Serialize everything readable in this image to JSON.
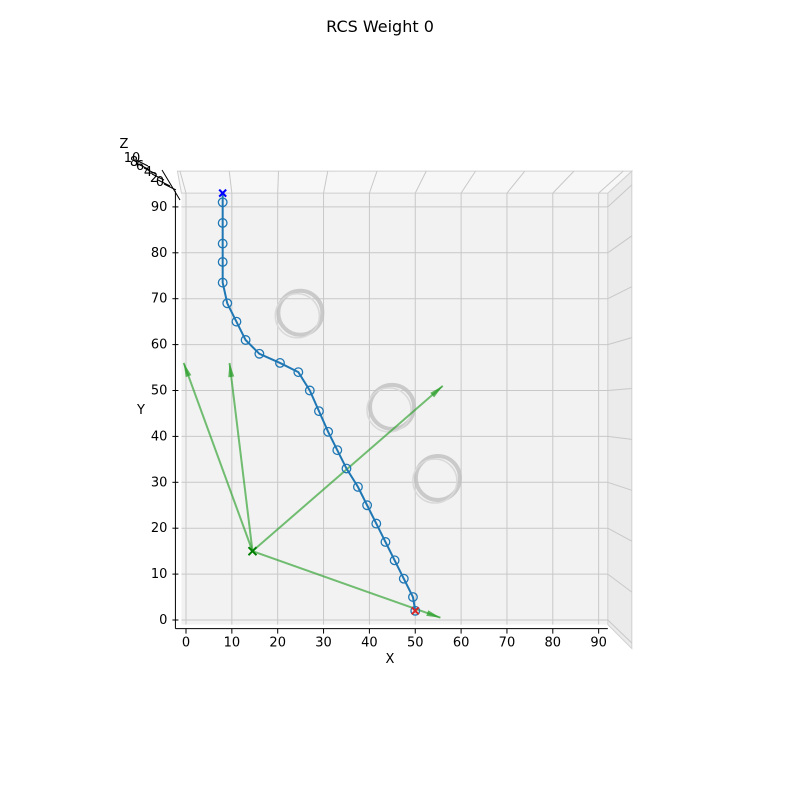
{
  "chart_data": {
    "type": "scatter",
    "title": "RCS Weight 0",
    "xlabel": "X",
    "ylabel": "Y",
    "zlabel": "Z",
    "xlim": [
      -1,
      92
    ],
    "ylim": [
      -1,
      93
    ],
    "x_ticks": [
      "0",
      "10",
      "20",
      "30",
      "40",
      "50",
      "60",
      "70",
      "80",
      "90"
    ],
    "y_ticks": [
      "0",
      "10",
      "20",
      "30",
      "40",
      "50",
      "60",
      "70",
      "80",
      "90"
    ],
    "z_ticks": [
      "0",
      "2",
      "4",
      "6",
      "8",
      "10"
    ],
    "grid": true,
    "view": "top-down (looking along Z)",
    "path": {
      "color": "#1f77b4",
      "marker": "open-circle",
      "x": [
        8,
        8,
        8,
        8,
        8,
        8,
        9,
        11,
        13,
        16,
        20.5,
        24.5,
        27,
        29,
        31,
        33,
        35,
        37.5,
        39.5,
        41.5,
        43.5,
        45.5,
        47.5,
        49.5,
        50
      ],
      "y": [
        93,
        91,
        86.5,
        82,
        78,
        73.5,
        69,
        65,
        61,
        58,
        56,
        54,
        50,
        45.5,
        41,
        37,
        33,
        29,
        25,
        21,
        17,
        13,
        9,
        5,
        2
      ]
    },
    "start_point": {
      "x": 8,
      "y": 93,
      "color": "#0000ff",
      "marker": "x"
    },
    "goal_point": {
      "x": 50,
      "y": 2,
      "color": "#d62728",
      "marker": "x-circle"
    },
    "obstacles": [
      {
        "cx": 24.5,
        "cy": 66.5,
        "r": 4.8,
        "color": "#bfbfbf"
      },
      {
        "cx": 44.5,
        "cy": 46,
        "r": 4.8,
        "color": "#bfbfbf"
      },
      {
        "cx": 54.5,
        "cy": 30.5,
        "r": 4.8,
        "color": "#bfbfbf"
      }
    ],
    "frame": {
      "origin": {
        "x": 14.5,
        "y": 15,
        "color": "#008000",
        "marker": "x"
      },
      "arrows": [
        {
          "to_x": -0.5,
          "to_y": 56,
          "color": "#2ca02c"
        },
        {
          "to_x": 9.5,
          "to_y": 56,
          "color": "#2ca02c"
        },
        {
          "to_x": 55.5,
          "to_y": 0.5,
          "color": "#2ca02c"
        },
        {
          "to_x": 56,
          "to_y": 51,
          "color": "#2ca02c"
        }
      ]
    }
  }
}
